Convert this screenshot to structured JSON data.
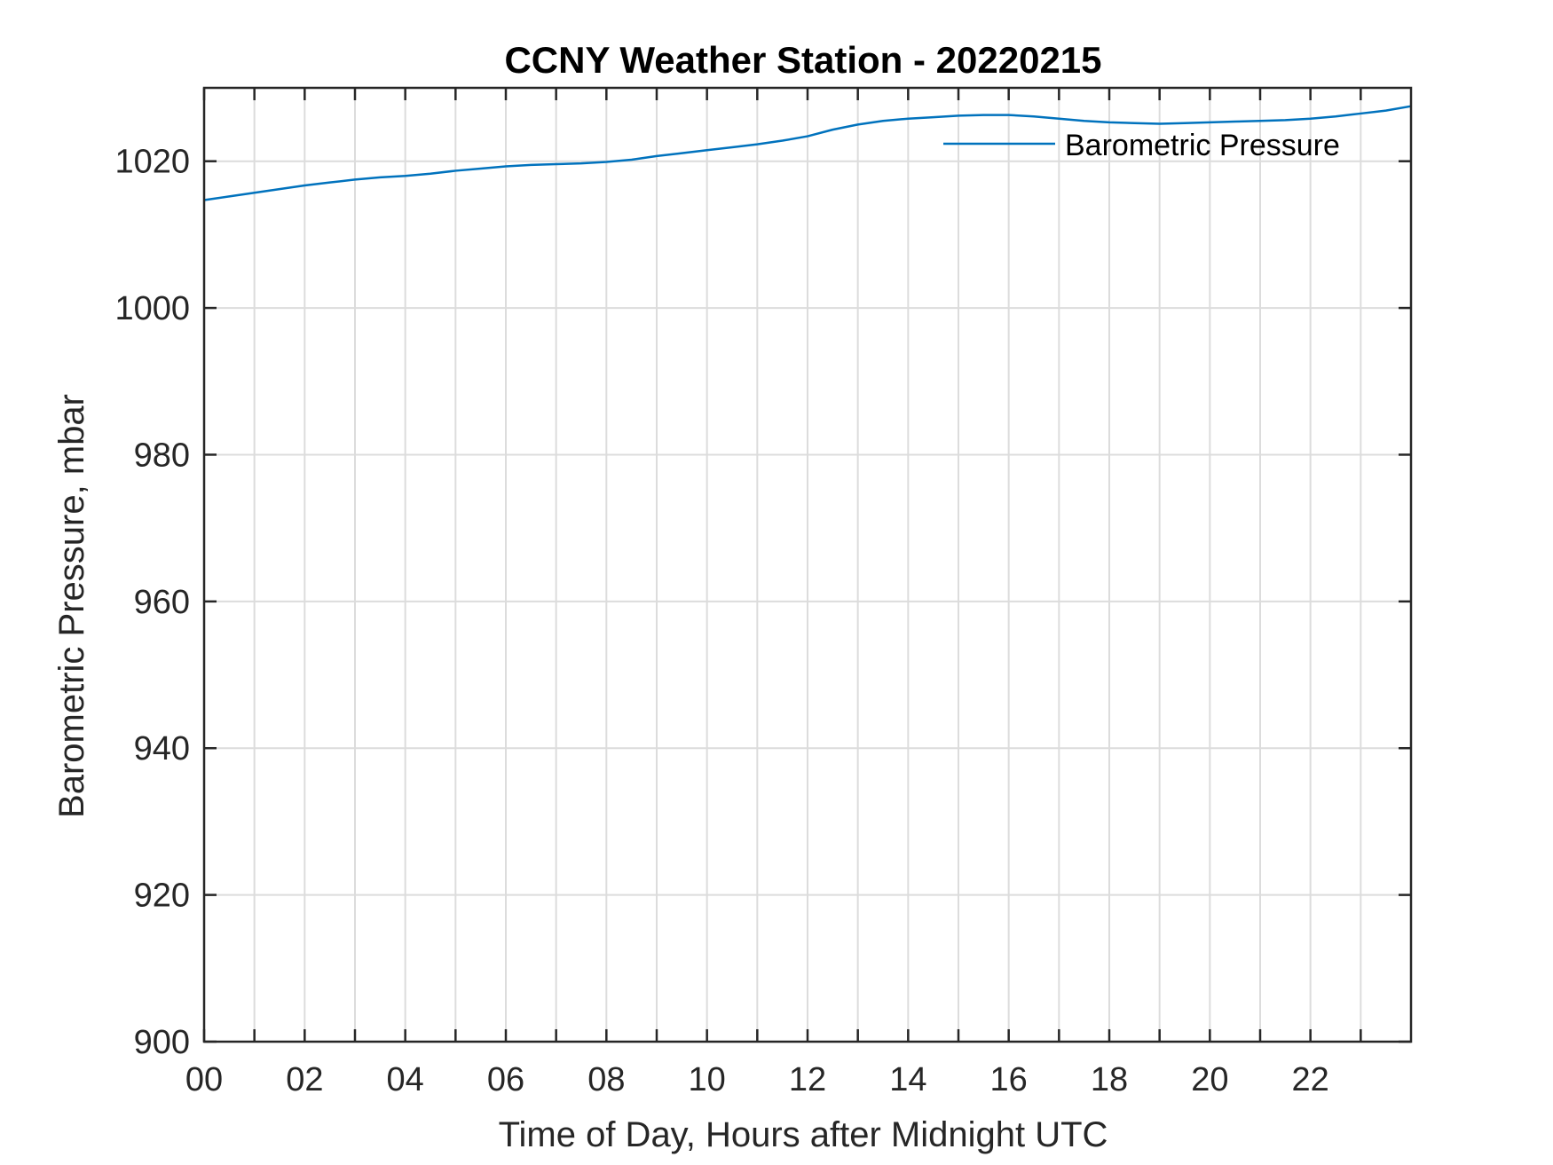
{
  "chart_data": {
    "type": "line",
    "title": "CCNY Weather Station - 20220215",
    "xlabel": "Time of Day, Hours after Midnight UTC",
    "ylabel": "Barometric Pressure, mbar",
    "xlim": [
      0,
      24
    ],
    "ylim": [
      900,
      1030
    ],
    "xticks": [
      0,
      2,
      4,
      6,
      8,
      10,
      12,
      14,
      16,
      18,
      20,
      22
    ],
    "xtick_labels": [
      "00",
      "02",
      "04",
      "06",
      "08",
      "10",
      "12",
      "14",
      "16",
      "18",
      "20",
      "22"
    ],
    "xgrid": [
      0,
      1,
      2,
      3,
      4,
      5,
      6,
      7,
      8,
      9,
      10,
      11,
      12,
      13,
      14,
      15,
      16,
      17,
      18,
      19,
      20,
      21,
      22,
      23
    ],
    "yticks": [
      900,
      920,
      940,
      960,
      980,
      1000,
      1020
    ],
    "ytick_labels": [
      "900",
      "920",
      "940",
      "960",
      "980",
      "1000",
      "1020"
    ],
    "grid": true,
    "legend_position": "top-right",
    "series": [
      {
        "name": "Barometric Pressure",
        "color": "#0072BD",
        "x": [
          0,
          0.5,
          1,
          1.5,
          2,
          2.5,
          3,
          3.5,
          4,
          4.5,
          5,
          5.5,
          6,
          6.5,
          7,
          7.5,
          8,
          8.5,
          9,
          9.5,
          10,
          10.5,
          11,
          11.5,
          12,
          12.5,
          13,
          13.5,
          14,
          14.5,
          15,
          15.5,
          16,
          16.5,
          17,
          17.5,
          18,
          18.5,
          19,
          19.5,
          20,
          20.5,
          21,
          21.5,
          22,
          22.5,
          23,
          23.5,
          24
        ],
        "values": [
          1014.7,
          1015.2,
          1015.7,
          1016.2,
          1016.7,
          1017.1,
          1017.5,
          1017.8,
          1018.0,
          1018.3,
          1018.7,
          1019.0,
          1019.3,
          1019.5,
          1019.6,
          1019.7,
          1019.9,
          1020.2,
          1020.7,
          1021.1,
          1021.5,
          1021.9,
          1022.3,
          1022.8,
          1023.4,
          1024.3,
          1025.0,
          1025.5,
          1025.8,
          1026.0,
          1026.2,
          1026.3,
          1026.3,
          1026.1,
          1025.8,
          1025.5,
          1025.3,
          1025.2,
          1025.1,
          1025.2,
          1025.3,
          1025.4,
          1025.5,
          1025.6,
          1025.8,
          1026.1,
          1026.5,
          1026.9,
          1027.5
        ]
      }
    ]
  }
}
